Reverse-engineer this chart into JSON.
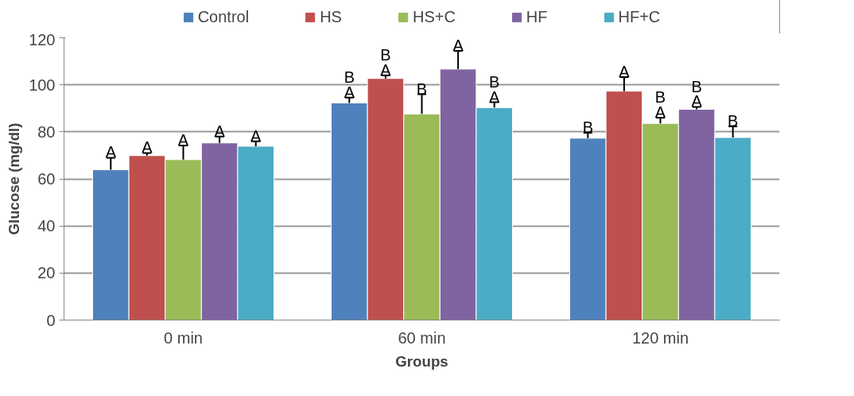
{
  "chart_data": {
    "type": "bar",
    "xlabel": "Groups",
    "ylabel": "Glucose (mg/dl)",
    "categories": [
      "0 min",
      "60 min",
      "120 min"
    ],
    "series": [
      {
        "name": "Control",
        "color": "#4f81bd",
        "values": [
          63.9,
          92.3,
          77.3
        ],
        "errors": [
          [
            63.9,
            69
          ],
          [
            92.3,
            94.6
          ],
          [
            77.3,
            79.6
          ]
        ],
        "value_labels": [
          "A",
          "B\nA",
          "B"
        ]
      },
      {
        "name": "HS",
        "color": "#c0504d",
        "values": [
          69.9,
          102.7,
          97.3
        ],
        "errors": [
          [
            69.9,
            71
          ],
          [
            102.7,
            104
          ],
          [
            97.3,
            103.3
          ]
        ],
        "value_labels": [
          "A",
          "B\nA",
          "A"
        ]
      },
      {
        "name": "HS+C",
        "color": "#9bbb59",
        "values": [
          68.2,
          87.6,
          83.6
        ],
        "errors": [
          [
            68.2,
            74.2
          ],
          [
            87.6,
            96
          ],
          [
            83.6,
            86
          ]
        ],
        "value_labels": [
          "A",
          "B",
          "B\nA"
        ]
      },
      {
        "name": "HF",
        "color": "#8064a2",
        "values": [
          75.3,
          106.7,
          89.6
        ],
        "errors": [
          [
            75.3,
            78
          ],
          [
            106.7,
            114.4
          ],
          [
            89.6,
            90.6
          ]
        ],
        "value_labels": [
          "A",
          "A",
          "B\nA"
        ]
      },
      {
        "name": "HF+C",
        "color": "#4bacc6",
        "values": [
          73.9,
          90.3,
          77.6
        ],
        "errors": [
          [
            73.9,
            76
          ],
          [
            90.3,
            92.6
          ],
          [
            77.6,
            82.3
          ]
        ],
        "value_labels": [
          "A",
          "B\nA",
          "B"
        ]
      }
    ],
    "ylim": [
      0,
      120
    ],
    "yticks": [
      0,
      20,
      40,
      60,
      80,
      100,
      120
    ],
    "grid": "y",
    "legend": "top"
  }
}
